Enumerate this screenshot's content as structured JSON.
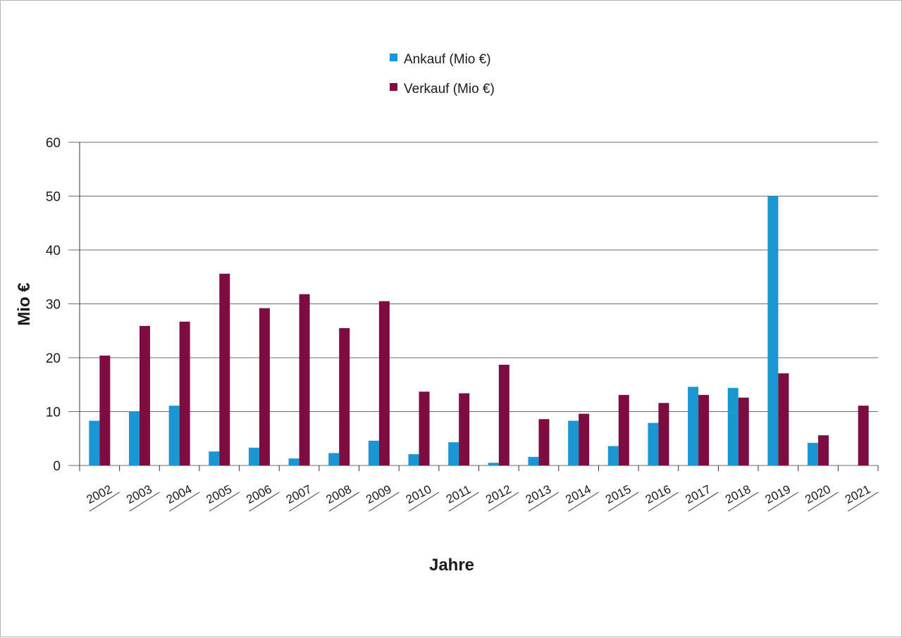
{
  "chart_data": {
    "type": "bar",
    "xlabel": "Jahre",
    "ylabel": "Mio €",
    "ylim": [
      0,
      60
    ],
    "yticks": [
      0,
      10,
      20,
      30,
      40,
      50,
      60
    ],
    "grid": true,
    "legend_position": "top-center",
    "categories": [
      "2002",
      "2003",
      "2004",
      "2005",
      "2006",
      "2007",
      "2008",
      "2009",
      "2010",
      "2011",
      "2012",
      "2013",
      "2014",
      "2015",
      "2016",
      "2017",
      "2018",
      "2019",
      "2020",
      "2021"
    ],
    "series": [
      {
        "name": "Ankauf (Mio €)",
        "color": "#1a96d4",
        "values": [
          8.3,
          10.0,
          11.1,
          2.6,
          3.3,
          1.3,
          2.3,
          4.6,
          2.1,
          4.3,
          0.5,
          1.6,
          8.3,
          3.6,
          7.9,
          14.6,
          14.4,
          50.0,
          4.2,
          0
        ]
      },
      {
        "name": "Verkauf (Mio €)",
        "color": "#7d0c40",
        "values": [
          20.4,
          25.9,
          26.7,
          35.6,
          29.2,
          31.8,
          25.5,
          30.5,
          13.7,
          13.4,
          18.7,
          8.6,
          9.6,
          13.1,
          11.6,
          13.1,
          12.6,
          17.1,
          5.6,
          11.1
        ]
      }
    ]
  }
}
